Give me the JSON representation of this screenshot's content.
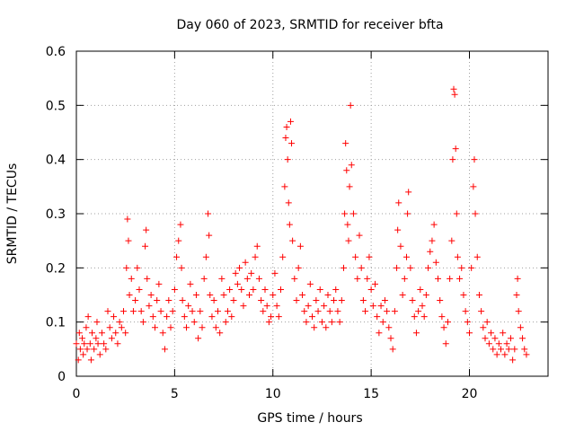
{
  "chart_data": {
    "type": "scatter",
    "title": "Day 060 of 2023, SRMTID for receiver bfta",
    "xlabel": "GPS time / hours",
    "ylabel": "SRMTID / TECUs",
    "xlim": [
      0,
      24
    ],
    "ylim": [
      0,
      0.6
    ],
    "xticks": [
      0,
      5,
      10,
      15,
      20
    ],
    "yticks": [
      0,
      0.1,
      0.2,
      0.3,
      0.4,
      0.5,
      0.6
    ],
    "xtick_labels": [
      "0",
      "5",
      "10",
      "15",
      "20"
    ],
    "ytick_labels": [
      "0",
      "0.1",
      "0.2",
      "0.3",
      "0.4",
      "0.5",
      "0.6"
    ],
    "grid": true,
    "marker": "+",
    "color": "#ff0000",
    "series": [
      {
        "name": "SRMTID",
        "points": [
          [
            0.0,
            0.06
          ],
          [
            0.1,
            0.03
          ],
          [
            0.15,
            0.08
          ],
          [
            0.2,
            0.05
          ],
          [
            0.3,
            0.07
          ],
          [
            0.35,
            0.04
          ],
          [
            0.4,
            0.06
          ],
          [
            0.5,
            0.09
          ],
          [
            0.55,
            0.05
          ],
          [
            0.6,
            0.11
          ],
          [
            0.7,
            0.06
          ],
          [
            0.75,
            0.03
          ],
          [
            0.8,
            0.08
          ],
          [
            0.9,
            0.05
          ],
          [
            1.0,
            0.07
          ],
          [
            1.05,
            0.1
          ],
          [
            1.1,
            0.06
          ],
          [
            1.2,
            0.04
          ],
          [
            1.3,
            0.08
          ],
          [
            1.4,
            0.06
          ],
          [
            1.5,
            0.05
          ],
          [
            1.6,
            0.12
          ],
          [
            1.7,
            0.09
          ],
          [
            1.8,
            0.07
          ],
          [
            1.9,
            0.11
          ],
          [
            2.0,
            0.08
          ],
          [
            2.1,
            0.06
          ],
          [
            2.2,
            0.1
          ],
          [
            2.3,
            0.09
          ],
          [
            2.4,
            0.12
          ],
          [
            2.5,
            0.08
          ],
          [
            2.55,
            0.2
          ],
          [
            2.6,
            0.29
          ],
          [
            2.65,
            0.25
          ],
          [
            2.7,
            0.15
          ],
          [
            2.8,
            0.18
          ],
          [
            2.9,
            0.12
          ],
          [
            3.0,
            0.14
          ],
          [
            3.1,
            0.2
          ],
          [
            3.2,
            0.16
          ],
          [
            3.3,
            0.12
          ],
          [
            3.4,
            0.1
          ],
          [
            3.5,
            0.24
          ],
          [
            3.55,
            0.27
          ],
          [
            3.6,
            0.18
          ],
          [
            3.7,
            0.13
          ],
          [
            3.8,
            0.15
          ],
          [
            3.9,
            0.11
          ],
          [
            4.0,
            0.09
          ],
          [
            4.1,
            0.14
          ],
          [
            4.2,
            0.17
          ],
          [
            4.3,
            0.12
          ],
          [
            4.4,
            0.08
          ],
          [
            4.5,
            0.05
          ],
          [
            4.6,
            0.11
          ],
          [
            4.7,
            0.14
          ],
          [
            4.8,
            0.09
          ],
          [
            4.9,
            0.12
          ],
          [
            5.0,
            0.16
          ],
          [
            5.1,
            0.22
          ],
          [
            5.2,
            0.25
          ],
          [
            5.3,
            0.28
          ],
          [
            5.35,
            0.2
          ],
          [
            5.4,
            0.14
          ],
          [
            5.5,
            0.11
          ],
          [
            5.6,
            0.09
          ],
          [
            5.7,
            0.13
          ],
          [
            5.8,
            0.17
          ],
          [
            5.9,
            0.12
          ],
          [
            6.0,
            0.1
          ],
          [
            6.1,
            0.15
          ],
          [
            6.2,
            0.07
          ],
          [
            6.3,
            0.12
          ],
          [
            6.4,
            0.09
          ],
          [
            6.5,
            0.18
          ],
          [
            6.6,
            0.22
          ],
          [
            6.7,
            0.3
          ],
          [
            6.75,
            0.26
          ],
          [
            6.8,
            0.15
          ],
          [
            6.9,
            0.11
          ],
          [
            7.0,
            0.14
          ],
          [
            7.1,
            0.09
          ],
          [
            7.2,
            0.12
          ],
          [
            7.3,
            0.08
          ],
          [
            7.4,
            0.18
          ],
          [
            7.5,
            0.15
          ],
          [
            7.6,
            0.1
          ],
          [
            7.7,
            0.12
          ],
          [
            7.8,
            0.16
          ],
          [
            7.9,
            0.11
          ],
          [
            8.0,
            0.14
          ],
          [
            8.1,
            0.19
          ],
          [
            8.2,
            0.17
          ],
          [
            8.3,
            0.2
          ],
          [
            8.4,
            0.16
          ],
          [
            8.5,
            0.13
          ],
          [
            8.6,
            0.21
          ],
          [
            8.7,
            0.18
          ],
          [
            8.8,
            0.15
          ],
          [
            8.9,
            0.19
          ],
          [
            9.0,
            0.16
          ],
          [
            9.1,
            0.22
          ],
          [
            9.2,
            0.24
          ],
          [
            9.3,
            0.18
          ],
          [
            9.4,
            0.14
          ],
          [
            9.5,
            0.12
          ],
          [
            9.6,
            0.16
          ],
          [
            9.7,
            0.13
          ],
          [
            9.8,
            0.1
          ],
          [
            9.9,
            0.11
          ],
          [
            10.0,
            0.15
          ],
          [
            10.1,
            0.19
          ],
          [
            10.2,
            0.13
          ],
          [
            10.3,
            0.11
          ],
          [
            10.4,
            0.16
          ],
          [
            10.5,
            0.22
          ],
          [
            10.6,
            0.35
          ],
          [
            10.65,
            0.44
          ],
          [
            10.7,
            0.46
          ],
          [
            10.75,
            0.4
          ],
          [
            10.8,
            0.32
          ],
          [
            10.85,
            0.28
          ],
          [
            10.9,
            0.47
          ],
          [
            10.95,
            0.43
          ],
          [
            11.0,
            0.25
          ],
          [
            11.1,
            0.18
          ],
          [
            11.2,
            0.14
          ],
          [
            11.3,
            0.2
          ],
          [
            11.4,
            0.24
          ],
          [
            11.5,
            0.15
          ],
          [
            11.6,
            0.12
          ],
          [
            11.7,
            0.1
          ],
          [
            11.8,
            0.13
          ],
          [
            11.9,
            0.17
          ],
          [
            12.0,
            0.11
          ],
          [
            12.1,
            0.09
          ],
          [
            12.2,
            0.14
          ],
          [
            12.3,
            0.12
          ],
          [
            12.4,
            0.16
          ],
          [
            12.5,
            0.1
          ],
          [
            12.6,
            0.13
          ],
          [
            12.7,
            0.09
          ],
          [
            12.8,
            0.15
          ],
          [
            12.9,
            0.12
          ],
          [
            13.0,
            0.1
          ],
          [
            13.1,
            0.14
          ],
          [
            13.2,
            0.16
          ],
          [
            13.3,
            0.12
          ],
          [
            13.4,
            0.1
          ],
          [
            13.5,
            0.14
          ],
          [
            13.6,
            0.2
          ],
          [
            13.65,
            0.3
          ],
          [
            13.7,
            0.43
          ],
          [
            13.75,
            0.38
          ],
          [
            13.8,
            0.28
          ],
          [
            13.85,
            0.25
          ],
          [
            13.9,
            0.35
          ],
          [
            13.95,
            0.5
          ],
          [
            14.0,
            0.39
          ],
          [
            14.1,
            0.3
          ],
          [
            14.2,
            0.22
          ],
          [
            14.3,
            0.18
          ],
          [
            14.4,
            0.26
          ],
          [
            14.5,
            0.2
          ],
          [
            14.6,
            0.14
          ],
          [
            14.7,
            0.12
          ],
          [
            14.8,
            0.18
          ],
          [
            14.9,
            0.22
          ],
          [
            15.0,
            0.16
          ],
          [
            15.1,
            0.13
          ],
          [
            15.2,
            0.17
          ],
          [
            15.3,
            0.11
          ],
          [
            15.4,
            0.08
          ],
          [
            15.5,
            0.13
          ],
          [
            15.6,
            0.1
          ],
          [
            15.7,
            0.14
          ],
          [
            15.8,
            0.12
          ],
          [
            15.9,
            0.09
          ],
          [
            16.0,
            0.07
          ],
          [
            16.1,
            0.05
          ],
          [
            16.2,
            0.12
          ],
          [
            16.3,
            0.2
          ],
          [
            16.35,
            0.27
          ],
          [
            16.4,
            0.32
          ],
          [
            16.5,
            0.24
          ],
          [
            16.6,
            0.15
          ],
          [
            16.7,
            0.18
          ],
          [
            16.8,
            0.22
          ],
          [
            16.85,
            0.3
          ],
          [
            16.9,
            0.34
          ],
          [
            17.0,
            0.2
          ],
          [
            17.1,
            0.14
          ],
          [
            17.2,
            0.11
          ],
          [
            17.3,
            0.08
          ],
          [
            17.4,
            0.12
          ],
          [
            17.5,
            0.16
          ],
          [
            17.6,
            0.13
          ],
          [
            17.7,
            0.11
          ],
          [
            17.8,
            0.15
          ],
          [
            17.9,
            0.2
          ],
          [
            18.0,
            0.23
          ],
          [
            18.1,
            0.25
          ],
          [
            18.2,
            0.28
          ],
          [
            18.3,
            0.21
          ],
          [
            18.4,
            0.18
          ],
          [
            18.5,
            0.14
          ],
          [
            18.6,
            0.11
          ],
          [
            18.7,
            0.09
          ],
          [
            18.8,
            0.06
          ],
          [
            18.9,
            0.1
          ],
          [
            19.0,
            0.18
          ],
          [
            19.1,
            0.25
          ],
          [
            19.15,
            0.4
          ],
          [
            19.2,
            0.53
          ],
          [
            19.25,
            0.52
          ],
          [
            19.3,
            0.42
          ],
          [
            19.35,
            0.3
          ],
          [
            19.4,
            0.22
          ],
          [
            19.5,
            0.18
          ],
          [
            19.6,
            0.2
          ],
          [
            19.7,
            0.15
          ],
          [
            19.8,
            0.12
          ],
          [
            19.9,
            0.1
          ],
          [
            20.0,
            0.08
          ],
          [
            20.1,
            0.2
          ],
          [
            20.2,
            0.35
          ],
          [
            20.25,
            0.4
          ],
          [
            20.3,
            0.3
          ],
          [
            20.4,
            0.22
          ],
          [
            20.5,
            0.15
          ],
          [
            20.6,
            0.12
          ],
          [
            20.7,
            0.09
          ],
          [
            20.8,
            0.07
          ],
          [
            20.9,
            0.1
          ],
          [
            21.0,
            0.06
          ],
          [
            21.1,
            0.08
          ],
          [
            21.2,
            0.05
          ],
          [
            21.3,
            0.07
          ],
          [
            21.4,
            0.04
          ],
          [
            21.5,
            0.06
          ],
          [
            21.6,
            0.05
          ],
          [
            21.7,
            0.08
          ],
          [
            21.8,
            0.04
          ],
          [
            21.9,
            0.06
          ],
          [
            22.0,
            0.05
          ],
          [
            22.1,
            0.07
          ],
          [
            22.2,
            0.03
          ],
          [
            22.3,
            0.05
          ],
          [
            22.4,
            0.15
          ],
          [
            22.45,
            0.18
          ],
          [
            22.5,
            0.12
          ],
          [
            22.6,
            0.09
          ],
          [
            22.7,
            0.07
          ],
          [
            22.8,
            0.05
          ],
          [
            22.9,
            0.04
          ]
        ]
      }
    ]
  }
}
